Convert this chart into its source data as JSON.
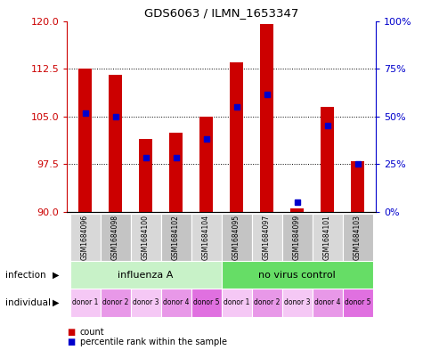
{
  "title": "GDS6063 / ILMN_1653347",
  "samples": [
    "GSM1684096",
    "GSM1684098",
    "GSM1684100",
    "GSM1684102",
    "GSM1684104",
    "GSM1684095",
    "GSM1684097",
    "GSM1684099",
    "GSM1684101",
    "GSM1684103"
  ],
  "red_values": [
    112.5,
    111.5,
    101.5,
    102.5,
    105.0,
    113.5,
    119.5,
    90.5,
    106.5,
    98.0
  ],
  "blue_values": [
    105.5,
    105.0,
    98.5,
    98.5,
    101.5,
    106.5,
    108.5,
    91.5,
    103.5,
    97.5
  ],
  "ylim_left": [
    90,
    120
  ],
  "ylim_right": [
    0,
    100
  ],
  "yticks_left": [
    90,
    97.5,
    105,
    112.5,
    120
  ],
  "yticks_right": [
    0,
    25,
    50,
    75,
    100
  ],
  "ytick_labels_right": [
    "0%",
    "25%",
    "50%",
    "75%",
    "100%"
  ],
  "individual_labels": [
    "donor 1",
    "donor 2",
    "donor 3",
    "donor 4",
    "donor 5",
    "donor 1",
    "donor 2",
    "donor 3",
    "donor 4",
    "donor 5"
  ],
  "bar_base": 90,
  "red_color": "#cc0000",
  "blue_color": "#0000cc",
  "axis_color_left": "#cc0000",
  "axis_color_right": "#0000cc",
  "bg_color": "#ffffff",
  "inf_color_light": "#c8f2c8",
  "inf_color_dark": "#66dd66",
  "ind_colors": [
    "#f5c8f5",
    "#e898e8",
    "#f5c8f5",
    "#e898e8",
    "#e070e0",
    "#f5c8f5",
    "#e898e8",
    "#f5c8f5",
    "#e898e8",
    "#e070e0"
  ],
  "gray_light": "#d8d8d8",
  "gray_dark": "#c4c4c4"
}
